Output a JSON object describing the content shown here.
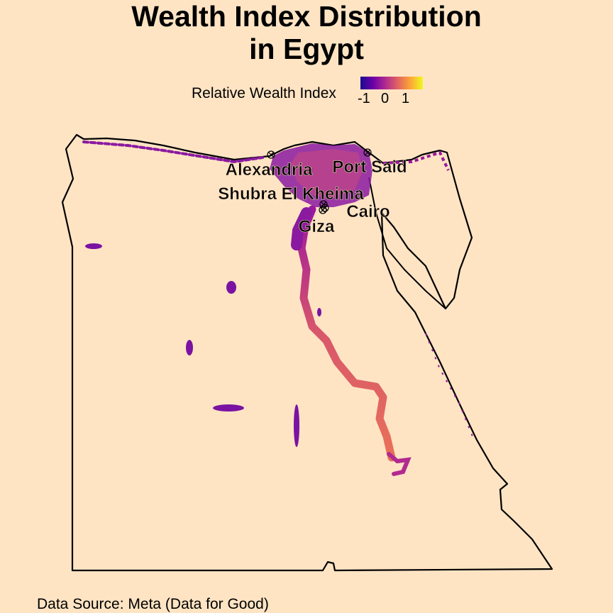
{
  "title": {
    "line1": "Wealth Index Distribution",
    "line2": "in Egypt"
  },
  "legend": {
    "label": "Relative Wealth Index",
    "ticks": [
      "-1",
      "0",
      "1"
    ],
    "colors": [
      "#1a0b8f",
      "#6b00a8",
      "#b12a90",
      "#e16462",
      "#fca636",
      "#f0f921"
    ]
  },
  "cities": [
    {
      "name": "Alexandria"
    },
    {
      "name": "Port Said"
    },
    {
      "name": "Shubra El Kheima"
    },
    {
      "name": "Cairo"
    },
    {
      "name": "Giza"
    }
  ],
  "caption": "Data Source: Meta (Data for Good)",
  "colors": {
    "background": "#ffe4c4",
    "border": "#000000"
  }
}
